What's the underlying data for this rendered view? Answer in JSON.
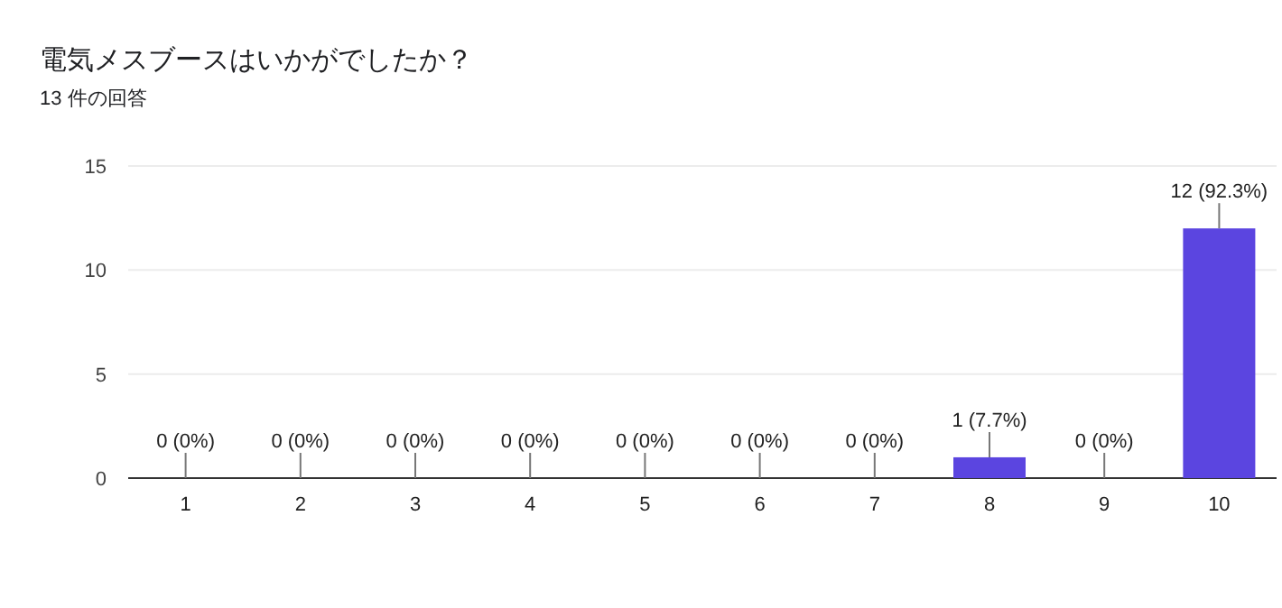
{
  "chart_data": {
    "type": "bar",
    "title": "電気メスブースはいかがでしたか？",
    "subtitle": "13 件の回答",
    "categories": [
      "1",
      "2",
      "3",
      "4",
      "5",
      "6",
      "7",
      "8",
      "9",
      "10"
    ],
    "values": [
      0,
      0,
      0,
      0,
      0,
      0,
      0,
      1,
      0,
      12
    ],
    "value_labels": [
      "0 (0%)",
      "0 (0%)",
      "0 (0%)",
      "0 (0%)",
      "0 (0%)",
      "0 (0%)",
      "0 (0%)",
      "1 (7.7%)",
      "0 (0%)",
      "12 (92.3%)"
    ],
    "color": "#5b45e0",
    "ylim": [
      0,
      15
    ],
    "yticks": [
      0,
      5,
      10,
      15
    ],
    "grid": "y"
  }
}
